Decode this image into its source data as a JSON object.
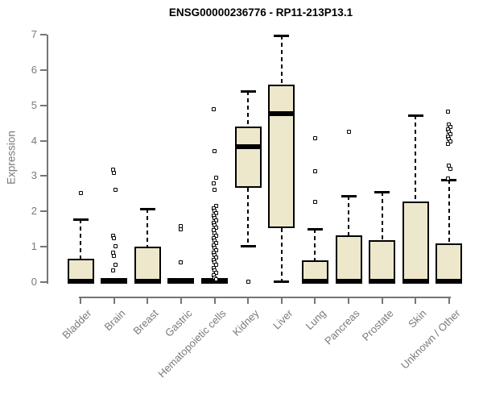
{
  "title": "ENSG00000236776 - RP11-213P13.1",
  "chart_data": {
    "type": "boxplot",
    "title": "ENSG00000236776 - RP11-213P13.1",
    "ylabel": "Expression",
    "xlabel": "",
    "ylim": [
      0,
      7
    ],
    "yticks": [
      0,
      1,
      2,
      3,
      4,
      5,
      6,
      7
    ],
    "grid": false,
    "legend": "none",
    "box_fill_color": "#EDE7CB",
    "box_border_color": "#000000",
    "axis_color": "#7A7A7A",
    "categories": [
      "Bladder",
      "Brain",
      "Breast",
      "Gastric",
      "Hematopoietic cells",
      "Kidney",
      "Liver",
      "Lung",
      "Pancreas",
      "Prostate",
      "Skin",
      "Unknown / Other"
    ],
    "series": [
      {
        "category": "Bladder",
        "whisker_low": 0,
        "q1": 0,
        "median": 0.03,
        "q3": 0.66,
        "whisker_high": 1.78,
        "outliers": [
          2.53
        ]
      },
      {
        "category": "Brain",
        "whisker_low": 0,
        "q1": 0,
        "median": 0.02,
        "q3": 0.05,
        "whisker_high": 0.05,
        "outliers": [
          3.17,
          3.1,
          2.62,
          1.3,
          1.24,
          1.02,
          0.84,
          0.75,
          0.5,
          0.34
        ]
      },
      {
        "category": "Breast",
        "whisker_low": 0,
        "q1": 0,
        "median": 0.03,
        "q3": 1.0,
        "whisker_high": 2.08,
        "outliers": []
      },
      {
        "category": "Gastric",
        "whisker_low": 0,
        "q1": 0,
        "median": 0.02,
        "q3": 0.05,
        "whisker_high": 0.05,
        "outliers": [
          1.58,
          1.5,
          0.57
        ]
      },
      {
        "category": "Hematopoietic cells",
        "whisker_low": 0,
        "q1": 0,
        "median": 0.02,
        "q3": 0.05,
        "whisker_high": 0.05,
        "outliers": [
          4.9,
          3.7,
          2.95,
          2.8,
          2.62,
          2.16,
          2.09,
          2.02,
          1.95,
          1.88,
          1.81,
          1.74,
          1.67,
          1.6,
          1.53,
          1.46,
          1.39,
          1.32,
          1.25,
          1.18,
          1.11,
          1.04,
          0.97,
          0.9,
          0.83,
          0.76,
          0.69,
          0.62,
          0.55,
          0.48,
          0.41,
          0.34,
          0.27,
          0.2,
          0.13,
          0.07
        ]
      },
      {
        "category": "Kidney",
        "whisker_low": 1.02,
        "q1": 2.66,
        "median": 3.83,
        "q3": 4.4,
        "whisker_high": 5.4,
        "outliers": [
          0.02
        ]
      },
      {
        "category": "Liver",
        "whisker_low": 0.02,
        "q1": 1.53,
        "median": 4.76,
        "q3": 5.58,
        "whisker_high": 6.97,
        "outliers": []
      },
      {
        "category": "Lung",
        "whisker_low": 0,
        "q1": 0,
        "median": 0.03,
        "q3": 0.62,
        "whisker_high": 1.5,
        "outliers": [
          4.08,
          3.14,
          2.28
        ]
      },
      {
        "category": "Pancreas",
        "whisker_low": 0,
        "q1": 0,
        "median": 0.03,
        "q3": 1.32,
        "whisker_high": 2.44,
        "outliers": [
          4.26
        ]
      },
      {
        "category": "Prostate",
        "whisker_low": 0,
        "q1": 0,
        "median": 0.03,
        "q3": 1.18,
        "whisker_high": 2.56,
        "outliers": []
      },
      {
        "category": "Skin",
        "whisker_low": 0,
        "q1": 0,
        "median": 0.03,
        "q3": 2.28,
        "whisker_high": 4.72,
        "outliers": []
      },
      {
        "category": "Unknown / Other",
        "whisker_low": 0,
        "q1": 0,
        "median": 0.03,
        "q3": 1.1,
        "whisker_high": 2.9,
        "outliers": [
          4.82,
          4.45,
          4.4,
          4.33,
          4.26,
          4.19,
          4.12,
          4.05,
          3.98,
          3.92,
          3.3,
          3.2,
          2.92
        ]
      }
    ]
  }
}
